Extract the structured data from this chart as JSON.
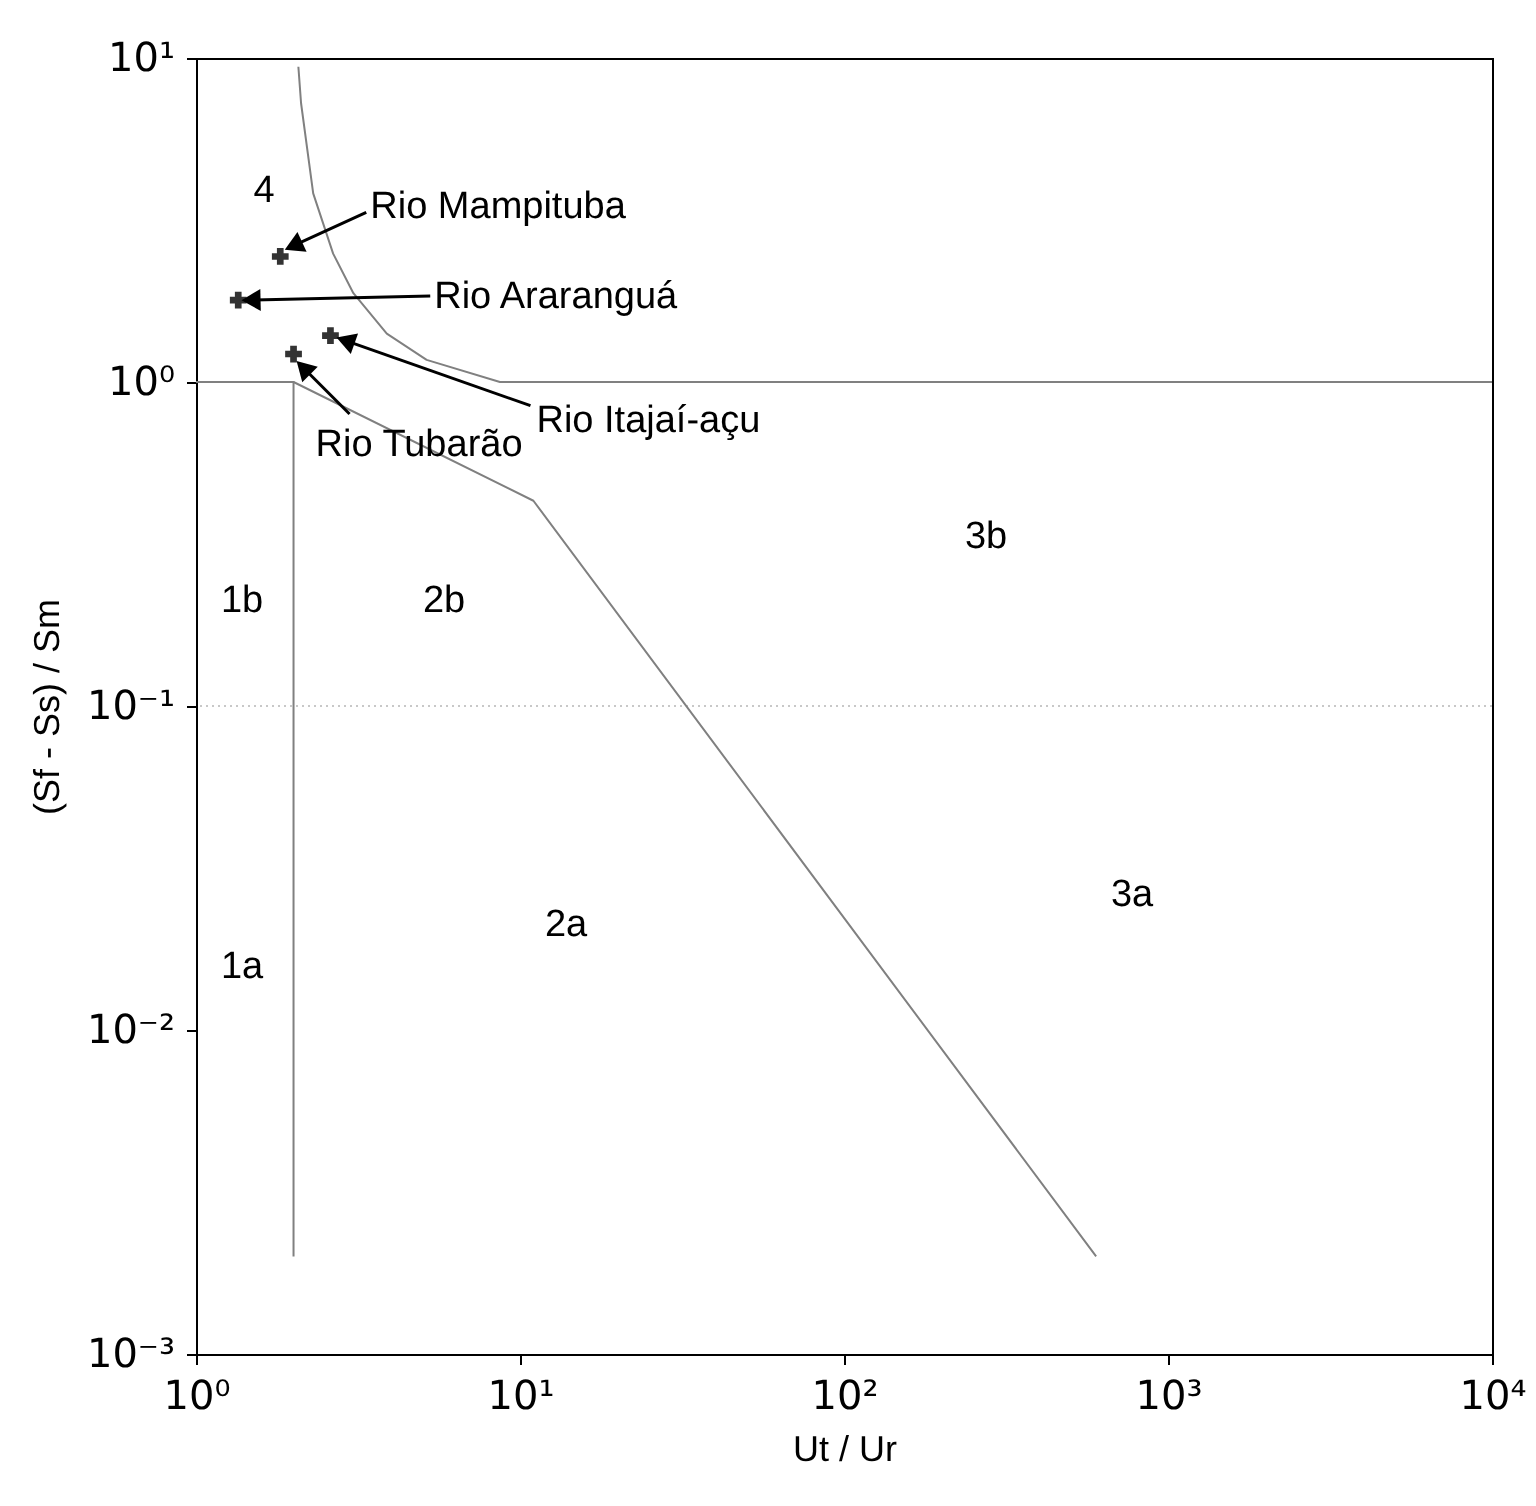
{
  "chart_data": {
    "type": "scatter",
    "xlabel": "Ut / Ur",
    "ylabel": "(Sf - Ss) / Sm",
    "log": "xy",
    "xlim": [
      1,
      10000
    ],
    "ylim": [
      0.001,
      10
    ],
    "xticks": [
      {
        "value": 1,
        "label": "10⁰"
      },
      {
        "value": 10,
        "label": "10¹"
      },
      {
        "value": 100,
        "label": "10²"
      },
      {
        "value": 1000,
        "label": "10³"
      },
      {
        "value": 10000,
        "label": "10⁴"
      }
    ],
    "yticks": [
      {
        "value": 0.001,
        "label": "10⁻³"
      },
      {
        "value": 0.01,
        "label": "10⁻²"
      },
      {
        "value": 0.1,
        "label": "10⁻¹"
      },
      {
        "value": 1,
        "label": "10⁰"
      },
      {
        "value": 10,
        "label": "10¹"
      }
    ],
    "grid": false,
    "series": [
      {
        "color": "#333333",
        "marker": "cross",
        "x": [
          1.82,
          1.35,
          2.6,
          2.0
        ],
        "values": [
          2.44,
          1.79,
          1.39,
          1.22
        ]
      },
      {
        "type": "line",
        "color": "#808080",
        "x": [
          2.07,
          2.11,
          2.3,
          2.65,
          3.06,
          3.88,
          5.15,
          8.67,
          10000
        ],
        "values": [
          9.4,
          7.25,
          3.82,
          2.49,
          1.88,
          1.41,
          1.17,
          1.0,
          1.0
        ]
      },
      {
        "type": "line",
        "color": "#808080",
        "x": [
          1,
          2,
          2
        ],
        "values": [
          1,
          1,
          0.002
        ]
      },
      {
        "type": "line",
        "color": "#808080",
        "x": [
          2,
          11,
          600
        ],
        "values": [
          1,
          0.43,
          0.002
        ]
      }
    ],
    "ref_lines": [
      {
        "axis": "y",
        "value": 0.1,
        "color": "#c8c8c8",
        "line_style": "dotted"
      }
    ],
    "annotations": [
      {
        "text": "Rio Mampituba",
        "x": 1.82,
        "y": 2.44
      },
      {
        "text": "Rio Araranguá",
        "x": 1.35,
        "y": 1.79
      },
      {
        "text": "Rio Itajaí-açu",
        "x": 2.6,
        "y": 1.39
      },
      {
        "text": "Rio Tubarão",
        "x": 2.0,
        "y": 1.22
      },
      "4",
      "1b",
      "2b",
      "3b",
      "1a",
      "2a",
      "3a"
    ]
  }
}
